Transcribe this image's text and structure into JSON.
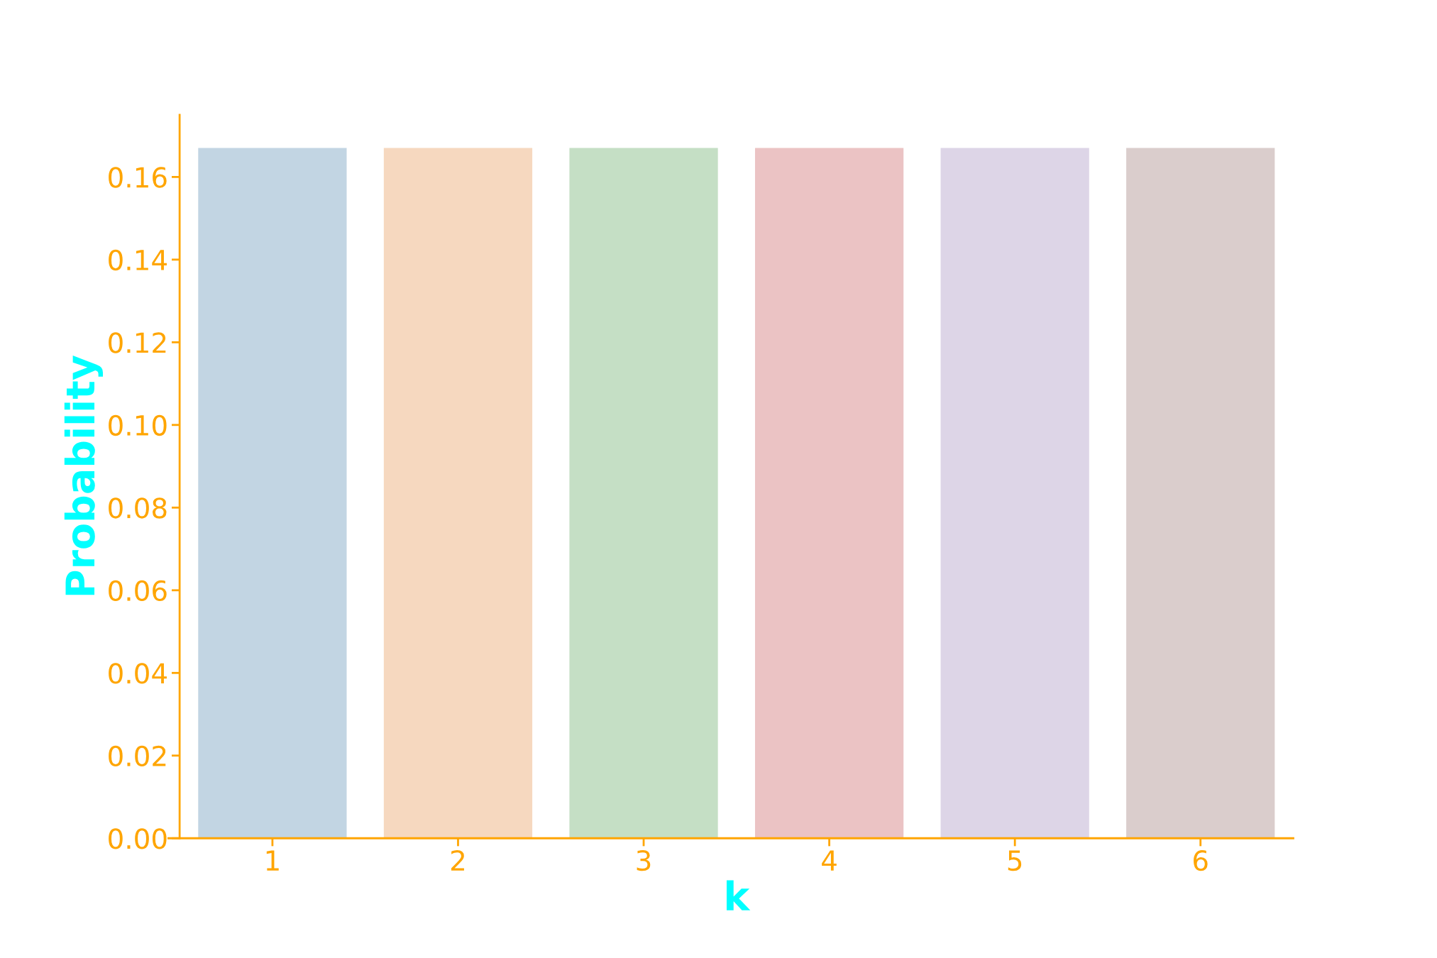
{
  "chart_data": {
    "type": "bar",
    "xlabel": "k",
    "ylabel": "Probability",
    "categories": [
      "1",
      "2",
      "3",
      "4",
      "5",
      "6"
    ],
    "values": [
      0.167,
      0.167,
      0.167,
      0.167,
      0.167,
      0.167
    ],
    "colors": [
      "#c2d5e3",
      "#f6d8bf",
      "#c5dfc5",
      "#ebc3c4",
      "#ddd5e7",
      "#dacdcc"
    ],
    "ylim": [
      0,
      0.175
    ],
    "yticks": [
      {
        "value": 0,
        "label": "0.00"
      },
      0.02,
      0.04,
      0.06,
      0.08,
      {
        "value": 0.1,
        "label": "0.10"
      },
      0.12,
      0.14,
      0.16
    ],
    "grid": false,
    "legend": false
  }
}
